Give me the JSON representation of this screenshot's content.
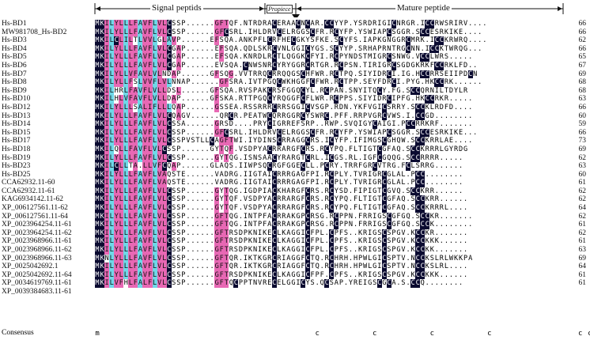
{
  "header": {
    "signal": "Signal peptids",
    "propiece": "Propiece",
    "mature": "Mature peptide"
  },
  "consensus_label": "Consensus",
  "consensus": "m                                             c           c           c           c                  c c",
  "rows": [
    {
      "name": "Hs-BD1",
      "seq": "MKILYLLLFAVFLVLCSSP......GFTQF.NTRDRACERAACNCAR.CCYYP.YSRDRIGICNRGR.ICCRWSRIRV....",
      "len": "66"
    },
    {
      "name": "MW981708_Hs-BD2",
      "seq": "MKILYLLLFAVFLVLCSSP......GFCSRL.IHLDRVCELRGGSCFR.RCYFP.YSWIAPCSGGR.SCCESRKIKE....",
      "len": "66"
    },
    {
      "name": "Hs-BD3",
      "seq": "MKILCLILTLVVLGLAVP......EFSQA.ANKPFLCRFHECGKYSFKE.SCYFS.IAPKGNGGRCMRK.ICCKRWRQ....",
      "len": "62"
    },
    {
      "name": "Hs-BD4",
      "seq": "MKILYLLLFAVFLVLCGAP......EFSQA.QDLSKRCVNLGGICYGS.SCYYP.SRHAPRNTRGCNN.ICCKTWRQG...",
      "len": "66"
    },
    {
      "name": "Hs-BD5",
      "seq": "MKILYLLLFAVFLVLCGAP......EFSQA.KNRDLRCTLQGGKCFYI.RCPYNDSTMIGRCSNWG.VCCLWRS.....",
      "len": "65"
    },
    {
      "name": "Hs-BD6",
      "seq": "MKILYLLLFAVFLVLCGAP......EVSQA.CNWSNRCYRYGGRCRTGR.RCPSN.TIRIGRCSGDGKRKFCCRKLFD..",
      "len": "67"
    },
    {
      "name": "Hs-BD7",
      "seq": "MKILYLLVFAVLVLNDAP......GFSQG.VVTRRQCRRQQGSCHFWR.RCTPQ.SIYIDRCI.IG.HCCRRSEIIPDCN",
      "len": "69"
    },
    {
      "name": "Hs-BD8",
      "seq": "MKILYLLFSLVVFLVLNNAP......GFSRA.IVTPGQCWKHGGFCFWR.RCTPP.SEYFDRCI.PYG.HKCCRK......",
      "len": "68"
    },
    {
      "name": "Hs-BD9",
      "seq": "MKILHRLFAVFLVLLDSL......GFSQA.RVSPAKCRSFGGQCYL.RCPAN.SNYITQCY.FG.SCCQRNILTDYLR",
      "len": "68"
    },
    {
      "name": "Hs-BD10",
      "seq": "MKILHLVFAVFLVLLDAP......GFSKA.RTTPGQCYRQGGFCFLWR.RCPPS.SIYIDRCIPFG.HKCCRKR.....",
      "len": "63"
    },
    {
      "name": "Hs-BD12",
      "seq": "MKILYLLLSALIFLLLQAP......GSSEA.RSSRRRCRRSGGICVSGP.RDN.YKFVGICSRRY.SCCKLRDFD....",
      "len": "66"
    },
    {
      "name": "Hs-BD13",
      "seq": "MKILYLLLFAVFLVLCQAGV......QRCR.PEATWCQRRGGRCYSWRC.PFF.RRPVGRCVWS.I.CCGD........",
      "len": "60"
    },
    {
      "name": "Hs-BD14",
      "seq": "MKILYLLLFAVFLVLCSSA......GRSD....PRYCIGRREFSRP..RWP.SVQIGYCAIGI.PCCRRKRF.......",
      "len": "59"
    },
    {
      "name": "Hs-BD15",
      "seq": "MKILYLLLFAVFLVLCSSP......GFCSRL.IHLDRVCELRGGSCFR.RCYFP.YSWIAPCSGGR.SCCESRKIKE...",
      "len": "66"
    },
    {
      "name": "Hs-BD17",
      "seq": "MKILYLLLFAVFLVLCSSPVSTLLCAGFTWI.IYDINSCRRAGGCRS.ICYFP.IFIMGSCGHQW.SCCKRRLAE....",
      "len": "73"
    },
    {
      "name": "Hs-BD18",
      "seq": "MKILQLLFAVFLVLCSSP......GYTQF.VSDPYACRRARGFCRS.RCYPQ.FLTIGTCGFAQ.SCCKRRRLGYRDG",
      "len": "69"
    },
    {
      "name": "Hs-BD19",
      "seq": "MKILYLLLFAVFLVLCSSP......GYTQG.ISNSAACYRARGTCRL.ICGS.RL.IGFCGQQG.SCCRRRR.....",
      "len": "62"
    },
    {
      "name": "Hs-BD23",
      "seq": "MKILCLLTA.LLVFCQAP......GLAQS.IIWPSQCRGFGGECLL.PCRY.TRRFGRCVTRG.FCLSRRG......",
      "len": "63"
    },
    {
      "name": "Hs-BD25",
      "seq": "MKILYLLLFAVFLVAQSTE......VADRG.IIGTAICRRRGAGFPI.RCPLY.TVRIGRCGLAL.PCC........",
      "len": "60"
    },
    {
      "name": "CCA62932.11-60",
      "seq": "MKILYLLLFAVFLVAQSTE......VADRG.IIGTAICRRRGAGFPI.RCPLY.TVRIGRCGLAL.PCC........",
      "len": "61"
    },
    {
      "name": "CCA62932.11-61",
      "seq": "MKILYLLLFAVFLVLCSSP......GYTQG.IGDPIACKHARGFCRS.RCYSD.FIPIGTCGVQ.SCCKRR......",
      "len": "62"
    },
    {
      "name": "KAG6934142.11-62",
      "seq": "MKILYLLLFAVFLVLCSSP......GYTQF.VSDPYACRRARGFCRS.RCYPQ.FLTIGTCGFAQ.SCCKRR......",
      "len": "62"
    },
    {
      "name": "XP_006127561.11-62",
      "seq": "MKILYLLLFAVFLVLCSSP......GYTQF.VSDPYACRRARGFCRS.RCYPQ.FLTIGTCGFAQ.SCCKRRRL....",
      "len": "64"
    },
    {
      "name": "XP_006127561.11-64",
      "seq": "MKILYLLLFAVFLVLCSSP......GFTQG.INTPFACRRAKGPCRSG.RCPPN.FRRIGSCGFGQ.SCCKR.......",
      "len": "62"
    },
    {
      "name": "XP_0023964254.11-61",
      "seq": "MKILYLLLFAVFLVLCSSP......GFTQG.INTPFACRRAKGPCRSG.RCPPN.FRRIGSCGFGQ.SCCK........",
      "len": "61"
    },
    {
      "name": "XP_0023964254.11-62",
      "seq": "MKILYLLLFAVFLVLCSSP......GFTRSDPKNIKECLKAGGICFPL.CPFS..KRIGSCSPGV.KCCKR.......",
      "len": "62"
    },
    {
      "name": "XP_0023968966.11-61",
      "seq": "MKILYLLLFAVFLVLCSSP......GFTRSDPKNIKECLKAGGICFPL.CPFS..KRIGSCSPGV.KCCKKK......",
      "len": "61"
    },
    {
      "name": "XP_0023968966.11-62",
      "seq": "MKILYLLLFAVFLVLCSSP......GFTRSDPKNIKECLKAGGICFPL.CPFS..KRIGSCSPGV.KCCKK.......",
      "len": "63"
    },
    {
      "name": "XP_0023968966.11-63",
      "seq": "MKNLYLLLFAVFLVLCSSP......GFTQR.IKTKGRCRIAGGFCTQ.RCHRH.HPWLGICSPTV.NCCKSLRLWKKPA",
      "len": "69"
    },
    {
      "name": "XP_0025042692.1",
      "seq": "MKILYLLLFAVFLVLCSSP......GFTQR.IKTKGRCRIAGGFCTQ.RCHRH.HPWLGICSPTV.NCCKSLRL....",
      "len": "64"
    },
    {
      "name": "XP_0025042692.11-64",
      "seq": "MKILYLLLFAVFLVLCSSP......GFTRSDPKNIKECLKAGGICFPF.CPFS..KRIGSCSPGV.KCCKKK......",
      "len": "61"
    },
    {
      "name": "XP_0034619769.11-61",
      "seq": "MKILVFHLFALFLVLCSSP......GFTQCPPTNVRECELGGICYS.QCSAP.YREIGSCGCA.S.CCQ........",
      "len": "61"
    },
    {
      "name": "XP_0039384683.11-61",
      "seq": "",
      "len": ""
    }
  ]
}
